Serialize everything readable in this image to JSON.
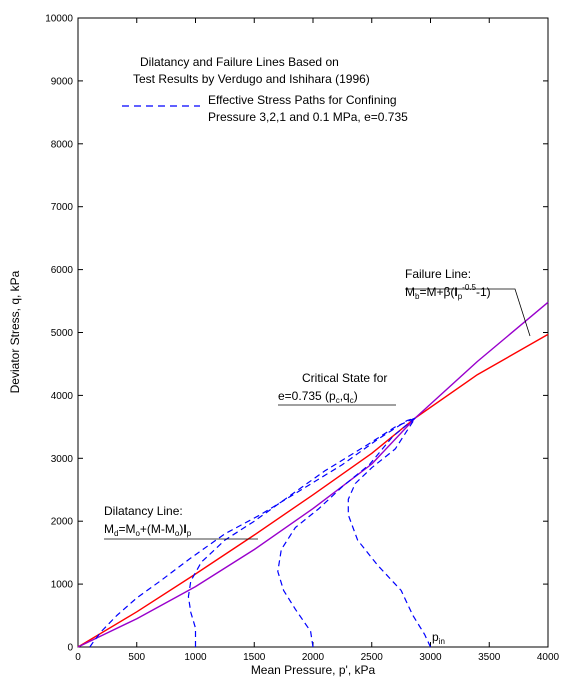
{
  "chart_data": {
    "type": "line",
    "xlabel": "Mean Pressure, p', kPa",
    "ylabel": "Deviator Stress, q, kPa",
    "xlim": [
      0,
      4000
    ],
    "ylim": [
      0,
      10000
    ],
    "x_ticks": [
      "0",
      "500",
      "1000",
      "1500",
      "2000",
      "2500",
      "3000",
      "3500",
      "4000"
    ],
    "y_ticks": [
      "0",
      "1000",
      "2000",
      "3000",
      "4000",
      "5000",
      "6000",
      "7000",
      "8000",
      "9000",
      "10000"
    ],
    "grid": false,
    "colors": {
      "dilatancy": "#ff0000",
      "failure": "#9900cc",
      "paths": "#0000ff"
    },
    "series": [
      {
        "key": "dilatancy",
        "style": "solid",
        "points": [
          [
            0,
            0
          ],
          [
            500,
            560
          ],
          [
            1000,
            1160
          ],
          [
            1500,
            1780
          ],
          [
            2000,
            2420
          ],
          [
            2500,
            3080
          ],
          [
            2870,
            3640
          ],
          [
            3400,
            4330
          ],
          [
            4000,
            4970
          ]
        ]
      },
      {
        "key": "failure",
        "style": "solid",
        "points": [
          [
            0,
            0
          ],
          [
            500,
            450
          ],
          [
            1000,
            960
          ],
          [
            1500,
            1550
          ],
          [
            2000,
            2200
          ],
          [
            2500,
            2910
          ],
          [
            2870,
            3640
          ],
          [
            3400,
            4540
          ],
          [
            4000,
            5480
          ]
        ]
      },
      {
        "key": "path_3",
        "style": "dashed",
        "points": [
          [
            3000,
            0
          ],
          [
            2950,
            200
          ],
          [
            2850,
            500
          ],
          [
            2750,
            900
          ],
          [
            2550,
            1300
          ],
          [
            2380,
            1700
          ],
          [
            2300,
            2100
          ],
          [
            2300,
            2350
          ],
          [
            2360,
            2600
          ],
          [
            2500,
            2850
          ],
          [
            2700,
            3150
          ],
          [
            2870,
            3640
          ]
        ]
      },
      {
        "key": "path_2",
        "style": "dashed",
        "points": [
          [
            2000,
            0
          ],
          [
            1980,
            250
          ],
          [
            1850,
            600
          ],
          [
            1750,
            900
          ],
          [
            1700,
            1200
          ],
          [
            1730,
            1550
          ],
          [
            1850,
            1900
          ],
          [
            2050,
            2200
          ],
          [
            2250,
            2550
          ],
          [
            2480,
            2900
          ],
          [
            2680,
            3350
          ],
          [
            2870,
            3640
          ]
        ]
      },
      {
        "key": "path_1",
        "style": "dashed",
        "points": [
          [
            1000,
            0
          ],
          [
            1000,
            300
          ],
          [
            960,
            550
          ],
          [
            940,
            800
          ],
          [
            960,
            1050
          ],
          [
            1050,
            1350
          ],
          [
            1250,
            1700
          ],
          [
            1500,
            2000
          ],
          [
            1800,
            2400
          ],
          [
            2100,
            2800
          ],
          [
            2450,
            3200
          ],
          [
            2700,
            3500
          ],
          [
            2870,
            3640
          ]
        ]
      },
      {
        "key": "path_01",
        "style": "dashed",
        "points": [
          [
            100,
            0
          ],
          [
            130,
            80
          ],
          [
            200,
            250
          ],
          [
            330,
            500
          ],
          [
            500,
            780
          ],
          [
            700,
            1050
          ],
          [
            950,
            1400
          ],
          [
            1250,
            1800
          ],
          [
            1550,
            2100
          ],
          [
            1900,
            2500
          ],
          [
            2250,
            2900
          ],
          [
            2550,
            3300
          ],
          [
            2800,
            3600
          ],
          [
            2870,
            3640
          ]
        ]
      }
    ],
    "annotations": {
      "title_line1": "Dilatancy and Failure Lines Based on",
      "title_line2": "Test Results by Verdugo and Ishihara (1996)",
      "legend_line1": "Effective Stress Paths for Confining",
      "legend_line2": "Pressure 3,2,1 and 0.1 MPa, e=0.735",
      "failure_label": "Failure Line:",
      "failure_eq_a": "M",
      "failure_eq_b": "b",
      "failure_eq_c": "=M+β(",
      "failure_eq_d": "I",
      "failure_eq_e": "p",
      "failure_eq_f": "-0.5",
      "failure_eq_g": "-1)",
      "critical_line1": "Critical State for",
      "critical_line2": "e=0.735 (p",
      "critical_c1": "c",
      "critical_mid": ",q",
      "critical_c2": "c",
      "critical_end": ")",
      "dilatancy_label": "Dilatancy Line:",
      "dil_a": "M",
      "dil_b": "d",
      "dil_c": "=M",
      "dil_d": "o",
      "dil_e": "+(M-M",
      "dil_f": "o",
      "dil_g": ")",
      "dil_h": "I",
      "dil_i": "p",
      "pin_a": "p",
      "pin_b": "in"
    }
  }
}
